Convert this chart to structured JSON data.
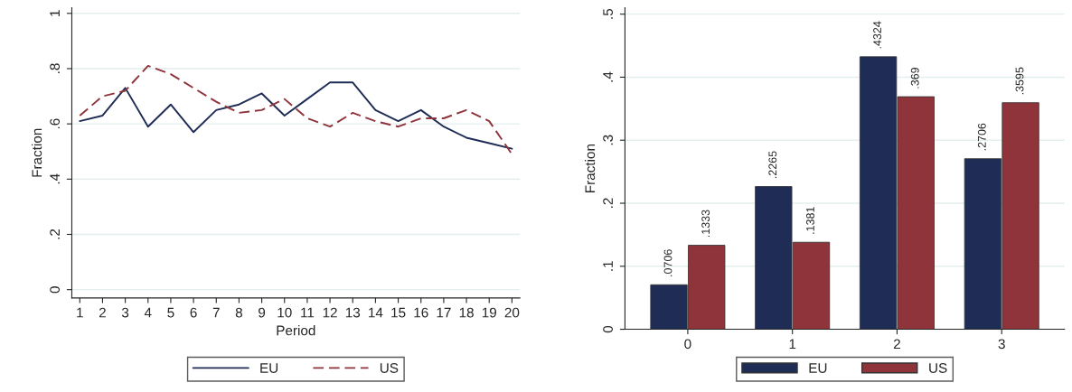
{
  "chart_data": [
    {
      "type": "line",
      "xlabel": "Period",
      "ylabel": "Fraction",
      "x": [
        1,
        2,
        3,
        4,
        5,
        6,
        7,
        8,
        9,
        10,
        11,
        12,
        13,
        14,
        15,
        16,
        17,
        18,
        19,
        20
      ],
      "series": [
        {
          "name": "EU",
          "color": "#1f2d56",
          "line_style": "solid",
          "values": [
            0.61,
            0.63,
            0.73,
            0.59,
            0.67,
            0.57,
            0.65,
            0.67,
            0.71,
            0.63,
            0.69,
            0.75,
            0.75,
            0.65,
            0.61,
            0.65,
            0.59,
            0.55,
            0.53,
            0.51
          ]
        },
        {
          "name": "US",
          "color": "#8f343b",
          "line_style": "dashed",
          "values": [
            0.63,
            0.7,
            0.72,
            0.81,
            0.78,
            0.73,
            0.68,
            0.64,
            0.65,
            0.69,
            0.62,
            0.59,
            0.64,
            0.61,
            0.59,
            0.62,
            0.62,
            0.65,
            0.61,
            0.49
          ]
        }
      ],
      "xlim": [
        0.65,
        20.35
      ],
      "xticks": [
        1,
        2,
        3,
        4,
        5,
        6,
        7,
        8,
        9,
        10,
        11,
        12,
        13,
        14,
        15,
        16,
        17,
        18,
        19,
        20
      ],
      "ylim": [
        -0.03,
        1.02
      ],
      "yticks": [
        {
          "value": 0,
          "label": "0"
        },
        {
          "value": 0.2,
          "label": ".2"
        },
        {
          "value": 0.4,
          "label": ".4"
        },
        {
          "value": 0.6,
          "label": ".6"
        },
        {
          "value": 0.8,
          "label": ".8"
        },
        {
          "value": 1,
          "label": "1"
        }
      ],
      "grid": "y",
      "legend": "bottom"
    },
    {
      "type": "bar",
      "ylabel": "Fraction",
      "categories": [
        "0",
        "1",
        "2",
        "3"
      ],
      "series": [
        {
          "name": "EU",
          "color": "#1f2d56",
          "values": [
            0.0706,
            0.2265,
            0.4324,
            0.2706
          ]
        },
        {
          "name": "US",
          "color": "#8f343b",
          "values": [
            0.1333,
            0.1381,
            0.369,
            0.3595
          ]
        }
      ],
      "value_labels": [
        [
          ".0706",
          ".2265",
          ".4324",
          ".2706"
        ],
        [
          ".1333",
          ".1381",
          ".369",
          ".3595"
        ]
      ],
      "ylim": [
        0,
        0.51
      ],
      "yticks": [
        {
          "value": 0,
          "label": "0"
        },
        {
          "value": 0.1,
          "label": ".1"
        },
        {
          "value": 0.2,
          "label": ".2"
        },
        {
          "value": 0.3,
          "label": ".3"
        },
        {
          "value": 0.4,
          "label": ".4"
        },
        {
          "value": 0.5,
          "label": ".5"
        }
      ],
      "grid": "y",
      "legend": "bottom"
    }
  ]
}
